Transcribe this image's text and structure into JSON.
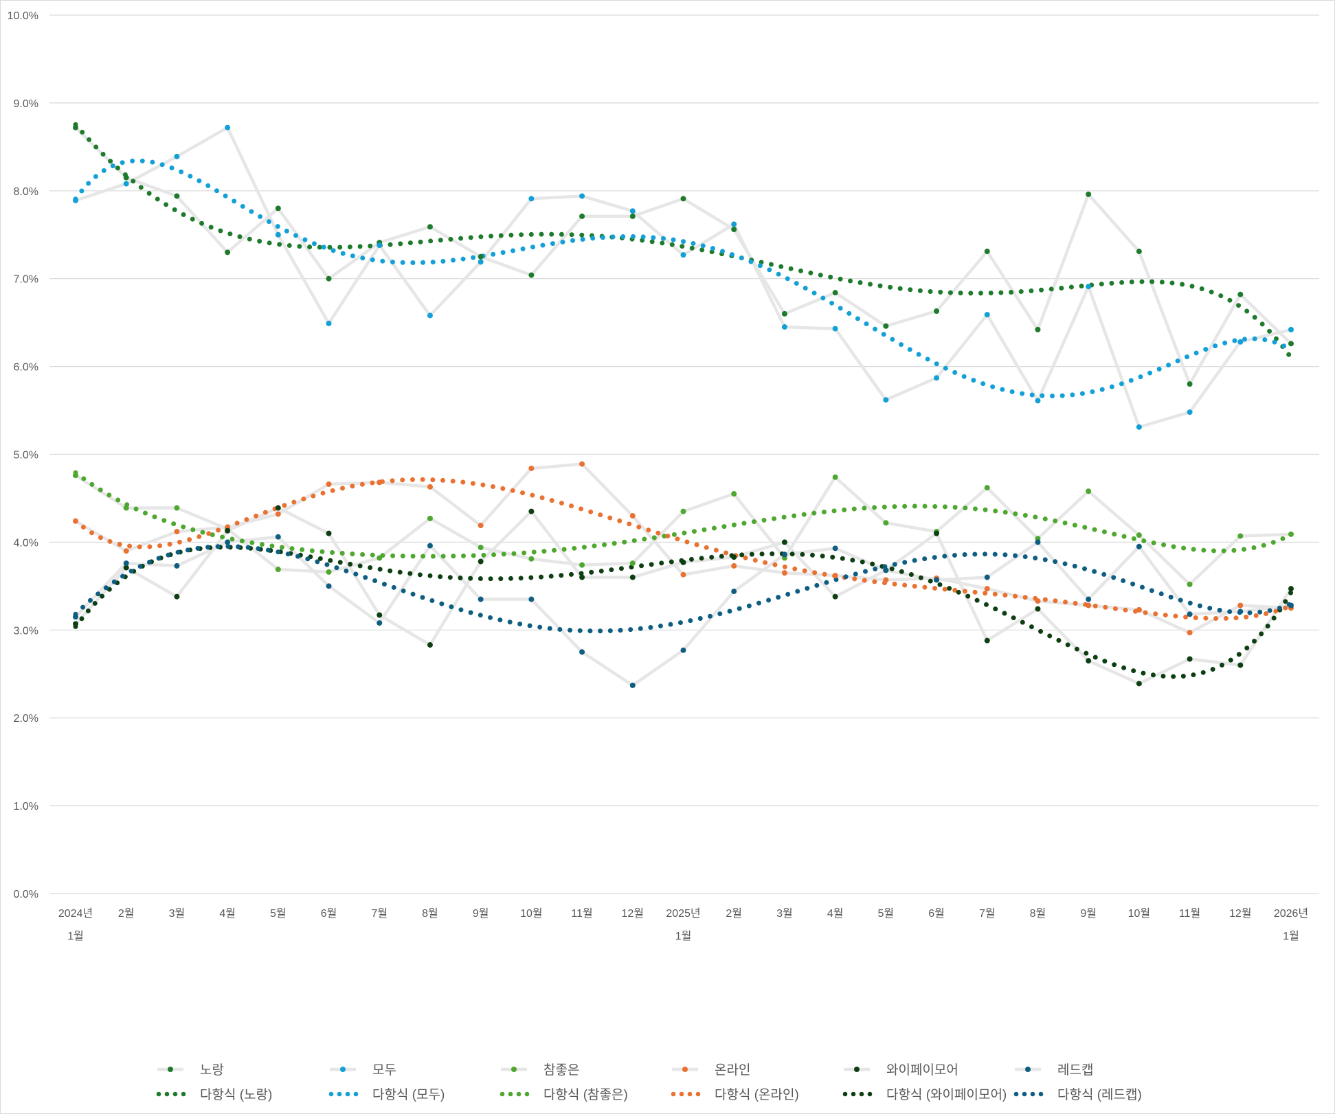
{
  "chart_data": {
    "type": "line",
    "title": "",
    "xlabel": "",
    "ylabel": "",
    "ylim": [
      0,
      10
    ],
    "y_ticks": [
      "0.0%",
      "1.0%",
      "2.0%",
      "3.0%",
      "4.0%",
      "5.0%",
      "6.0%",
      "7.0%",
      "8.0%",
      "9.0%",
      "10.0%"
    ],
    "grid": true,
    "legend": "bottom",
    "x_tick_labels": [
      [
        "2024년",
        "1월"
      ],
      [
        "2월"
      ],
      [
        "3월"
      ],
      [
        "4월"
      ],
      [
        "5월"
      ],
      [
        "6월"
      ],
      [
        "7월"
      ],
      [
        "8월"
      ],
      [
        "9월"
      ],
      [
        "10월"
      ],
      [
        "11월"
      ],
      [
        "12월"
      ],
      [
        "2025년",
        "1월"
      ],
      [
        "2월"
      ],
      [
        "3월"
      ],
      [
        "4월"
      ],
      [
        "5월"
      ],
      [
        "6월"
      ],
      [
        "7월"
      ],
      [
        "8월"
      ],
      [
        "9월"
      ],
      [
        "10월"
      ],
      [
        "11월"
      ],
      [
        "12월"
      ],
      [
        "2026년",
        "1월"
      ]
    ],
    "line_color": "#e6e6e6",
    "trendline": {
      "type": "polynomial",
      "style": "dotted"
    },
    "series": [
      {
        "name": "노랑",
        "trend_name": "다항식 (노랑)",
        "color": "#1e7b2c",
        "values": [
          8.72,
          8.15,
          7.94,
          7.3,
          7.8,
          7.0,
          7.41,
          7.59,
          7.25,
          7.04,
          7.71,
          7.71,
          7.91,
          7.56,
          6.6,
          6.84,
          6.46,
          6.63,
          7.31,
          6.42,
          7.96,
          7.31,
          5.8,
          6.82,
          6.26
        ]
      },
      {
        "name": "모두",
        "trend_name": "다항식 (모두)",
        "color": "#12a0d7",
        "values": [
          7.89,
          8.08,
          8.39,
          8.72,
          7.5,
          6.49,
          7.38,
          6.58,
          7.19,
          7.91,
          7.94,
          7.77,
          7.27,
          7.62,
          6.45,
          6.43,
          5.62,
          5.87,
          6.59,
          5.61,
          6.91,
          5.31,
          5.48,
          6.28,
          6.42
        ]
      },
      {
        "name": "참좋은",
        "trend_name": "다항식 (참좋은)",
        "color": "#4ea72e",
        "values": [
          4.76,
          4.39,
          4.39,
          4.15,
          3.69,
          3.66,
          3.82,
          4.27,
          3.94,
          3.81,
          3.74,
          3.76,
          4.35,
          4.55,
          3.82,
          4.74,
          4.22,
          4.12,
          4.62,
          4.04,
          4.58,
          4.08,
          3.52,
          4.07,
          4.09
        ]
      },
      {
        "name": "온라인",
        "trend_name": "다항식 (온라인)",
        "color": "#e97132",
        "values": [
          4.24,
          3.9,
          4.12,
          4.17,
          4.32,
          4.66,
          4.68,
          4.63,
          4.19,
          4.84,
          4.89,
          4.3,
          3.63,
          3.73,
          3.65,
          3.62,
          3.57,
          3.59,
          3.47,
          3.33,
          3.28,
          3.23,
          2.97,
          3.28,
          3.25
        ]
      },
      {
        "name": "와이페이모어",
        "trend_name": "다항식 (와이페이모어)",
        "color": "#0d3f12",
        "values": [
          3.07,
          3.71,
          3.38,
          4.13,
          4.39,
          4.1,
          3.17,
          2.83,
          3.78,
          4.35,
          3.6,
          3.6,
          3.77,
          3.83,
          4.0,
          3.38,
          3.68,
          4.1,
          2.88,
          3.24,
          2.65,
          2.39,
          2.67,
          2.6,
          3.47
        ]
      },
      {
        "name": "레드캡",
        "trend_name": "다항식 (레드캡)",
        "color": "#0f5e82",
        "values": [
          3.15,
          3.76,
          3.73,
          4.0,
          4.06,
          3.5,
          3.08,
          3.96,
          3.35,
          3.35,
          2.75,
          2.37,
          2.77,
          3.44,
          3.86,
          3.93,
          3.68,
          3.57,
          3.6,
          4.0,
          3.35,
          3.95,
          3.18,
          3.21,
          3.28
        ]
      }
    ]
  }
}
